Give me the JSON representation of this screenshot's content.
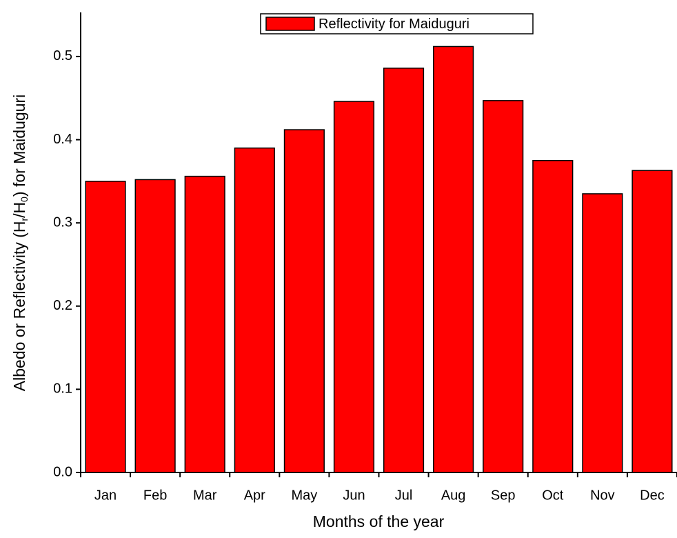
{
  "chart_data": {
    "type": "bar",
    "x_label": "Months of the year",
    "y_label_parts": [
      "Albedo or Reflectivity (H",
      "r",
      "/H",
      "0",
      ") for Maiduguri"
    ],
    "categories": [
      "Jan",
      "Feb",
      "Mar",
      "Apr",
      "May",
      "Jun",
      "Jul",
      "Aug",
      "Sep",
      "Oct",
      "Nov",
      "Dec"
    ],
    "series": [
      {
        "name": "Reflectivity for Maiduguri",
        "color": "#ff0000",
        "values": [
          0.35,
          0.352,
          0.356,
          0.39,
          0.412,
          0.446,
          0.486,
          0.512,
          0.447,
          0.375,
          0.335,
          0.363
        ]
      }
    ],
    "ylim": [
      0,
      0.553
    ],
    "yticks": [
      {
        "value": 0,
        "label": "0.0"
      },
      0.1,
      0.2,
      0.3,
      0.4,
      0.5
    ],
    "grid": false,
    "legend": "top"
  }
}
